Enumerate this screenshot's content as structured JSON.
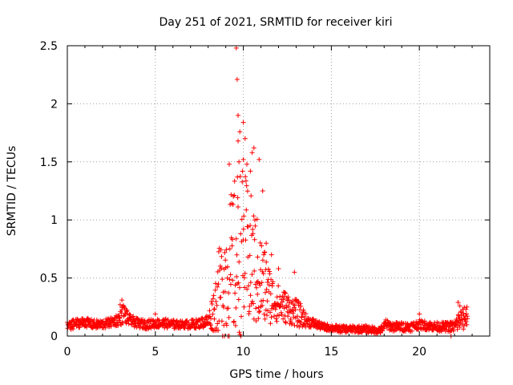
{
  "chart_data": {
    "type": "scatter",
    "title": "Day 251 of 2021, SRMTID for receiver kiri",
    "xlabel": "GPS time / hours",
    "ylabel": "SRMTID / TECUs",
    "xlim": [
      0,
      24.0
    ],
    "ylim": [
      0,
      2.5
    ],
    "xticks": [
      0,
      5,
      10,
      15,
      20
    ],
    "xtick_labels": [
      "0",
      "5",
      "10",
      "15",
      "20"
    ],
    "yticks": [
      0,
      0.5,
      1,
      1.5,
      2,
      2.5
    ],
    "ytick_labels": [
      "0",
      "0.5",
      "1",
      "1.5",
      "2",
      "2.5"
    ],
    "grid": true,
    "marker": "+",
    "colors": {
      "series": "#ff0000",
      "grid": "#a0a0a0",
      "axis": "#000000"
    },
    "series": [
      {
        "name": "SRMTID",
        "envelope": {
          "x": [
            0,
            0.5,
            1,
            1.5,
            2,
            2.5,
            3,
            3.2,
            3.5,
            4,
            4.5,
            5,
            5.5,
            6,
            6.5,
            7,
            7.5,
            8,
            8.3,
            8.6,
            9,
            9.3,
            9.6,
            9.8,
            10,
            10.3,
            10.6,
            10.9,
            11.2,
            11.5,
            11.8,
            12.1,
            12.4,
            12.7,
            13,
            13.3,
            13.6,
            14,
            14.5,
            15,
            15.5,
            16,
            16.5,
            17,
            17.5,
            17.8,
            18.1,
            18.5,
            19,
            19.5,
            20,
            20.5,
            21,
            21.5,
            22,
            22.3,
            22.6
          ],
          "base": [
            0.08,
            0.11,
            0.12,
            0.1,
            0.1,
            0.12,
            0.15,
            0.2,
            0.14,
            0.11,
            0.1,
            0.11,
            0.11,
            0.1,
            0.1,
            0.1,
            0.11,
            0.13,
            0.22,
            0.38,
            0.5,
            0.58,
            0.68,
            0.72,
            0.75,
            0.66,
            0.6,
            0.5,
            0.42,
            0.35,
            0.3,
            0.27,
            0.25,
            0.22,
            0.2,
            0.17,
            0.13,
            0.11,
            0.08,
            0.07,
            0.06,
            0.06,
            0.06,
            0.06,
            0.05,
            0.05,
            0.1,
            0.08,
            0.08,
            0.08,
            0.1,
            0.09,
            0.08,
            0.08,
            0.08,
            0.14,
            0.17
          ],
          "spread": [
            0.04,
            0.04,
            0.04,
            0.04,
            0.04,
            0.04,
            0.06,
            0.09,
            0.05,
            0.04,
            0.04,
            0.04,
            0.04,
            0.04,
            0.03,
            0.04,
            0.04,
            0.06,
            0.18,
            0.35,
            0.55,
            0.65,
            0.75,
            0.75,
            0.7,
            0.62,
            0.55,
            0.45,
            0.35,
            0.25,
            0.18,
            0.15,
            0.14,
            0.12,
            0.12,
            0.1,
            0.05,
            0.04,
            0.03,
            0.03,
            0.03,
            0.03,
            0.03,
            0.03,
            0.03,
            0.03,
            0.04,
            0.04,
            0.04,
            0.04,
            0.04,
            0.04,
            0.04,
            0.04,
            0.05,
            0.1,
            0.08
          ]
        },
        "x_start": 0,
        "x_end": 22.75,
        "sample_step_hours": 0.018,
        "peaks": [
          {
            "x": 9.6,
            "y": 2.48
          },
          {
            "x": 9.65,
            "y": 2.21
          },
          {
            "x": 9.7,
            "y": 1.9
          },
          {
            "x": 10.0,
            "y": 1.84
          },
          {
            "x": 9.8,
            "y": 1.76
          },
          {
            "x": 10.1,
            "y": 1.7
          },
          {
            "x": 9.7,
            "y": 1.68
          },
          {
            "x": 10.6,
            "y": 1.62
          },
          {
            "x": 10.5,
            "y": 1.58
          },
          {
            "x": 10.9,
            "y": 1.52
          },
          {
            "x": 9.75,
            "y": 1.5
          },
          {
            "x": 10.0,
            "y": 1.52
          },
          {
            "x": 9.2,
            "y": 1.48
          },
          {
            "x": 10.4,
            "y": 1.42
          },
          {
            "x": 10.2,
            "y": 1.48
          },
          {
            "x": 11.1,
            "y": 1.25
          },
          {
            "x": 11.3,
            "y": 0.8
          },
          {
            "x": 11.6,
            "y": 0.7
          },
          {
            "x": 12.0,
            "y": 0.58
          },
          {
            "x": 12.9,
            "y": 0.55
          },
          {
            "x": 3.1,
            "y": 0.31
          },
          {
            "x": 3.0,
            "y": 0.27
          },
          {
            "x": 22.2,
            "y": 0.29
          },
          {
            "x": 22.3,
            "y": 0.26
          },
          {
            "x": 22.7,
            "y": 0.25
          },
          {
            "x": 20.0,
            "y": 0.19
          },
          {
            "x": 18.1,
            "y": 0.14
          },
          {
            "x": 5.0,
            "y": 0.19
          },
          {
            "x": 21.8,
            "y": 0.0
          },
          {
            "x": 22.5,
            "y": 0.06
          }
        ]
      }
    ]
  }
}
